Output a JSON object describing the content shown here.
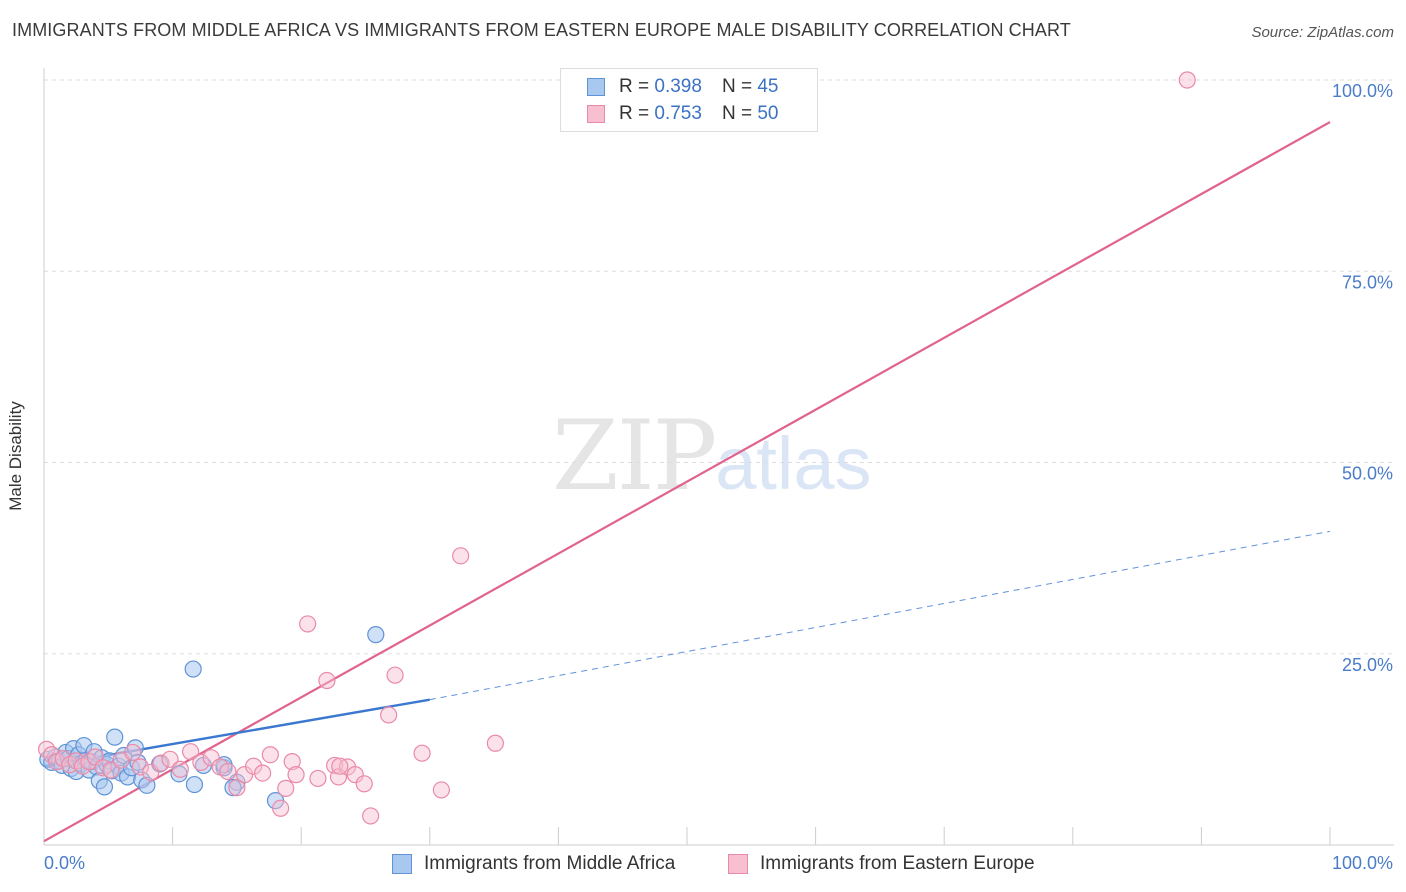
{
  "header": {
    "title": "IMMIGRANTS FROM MIDDLE AFRICA VS IMMIGRANTS FROM EASTERN EUROPE MALE DISABILITY CORRELATION CHART",
    "source": "Source: ZipAtlas.com"
  },
  "watermark": {
    "zip": "ZIP",
    "atlas": "atlas"
  },
  "legend": {
    "rows": [
      {
        "r_label": "R =",
        "r_value": "0.398",
        "n_label": "N =",
        "n_value": "45"
      },
      {
        "r_label": "R =",
        "r_value": "0.753",
        "n_label": "N =",
        "n_value": "50"
      }
    ]
  },
  "colors": {
    "blue_fill": "#a9c8f0",
    "blue_stroke": "#5f93d6",
    "blue_line": "#3b78d0",
    "pink_fill": "#f7bfd0",
    "pink_stroke": "#e98aa8",
    "pink_line": "#e0628d",
    "grid": "#dddddd",
    "tick_text": "#4a7cc9"
  },
  "chart_data": {
    "type": "scatter",
    "title": "IMMIGRANTS FROM MIDDLE AFRICA VS IMMIGRANTS FROM EASTERN EUROPE MALE DISABILITY CORRELATION CHART",
    "xlabel": "",
    "ylabel": "Male Disability",
    "xlim": [
      0,
      100
    ],
    "ylim": [
      0,
      100
    ],
    "x_tick_labels": [
      "0.0%",
      "100.0%"
    ],
    "y_ticks": [
      25,
      50,
      75,
      100
    ],
    "y_tick_labels": [
      "25.0%",
      "50.0%",
      "75.0%",
      "100.0%"
    ],
    "grid": true,
    "legend_position": "top-center",
    "series": [
      {
        "name": "Immigrants from Middle Africa",
        "color": "#a9c8f0",
        "r": 0.398,
        "n": 45,
        "trend": {
          "x": [
            0,
            30
          ],
          "y": [
            10.3,
            19.0
          ],
          "dashed_extension_to": [
            100,
            41.0
          ]
        },
        "points": [
          [
            0.3,
            11.2
          ],
          [
            0.6,
            10.8
          ],
          [
            0.9,
            11.5
          ],
          [
            1.2,
            11.0
          ],
          [
            1.4,
            10.4
          ],
          [
            1.7,
            12.1
          ],
          [
            1.9,
            11.3
          ],
          [
            2.1,
            10.0
          ],
          [
            2.3,
            12.6
          ],
          [
            2.5,
            9.6
          ],
          [
            2.7,
            11.8
          ],
          [
            2.9,
            10.6
          ],
          [
            3.1,
            13.0
          ],
          [
            3.3,
            11.1
          ],
          [
            3.5,
            9.8
          ],
          [
            3.7,
            10.9
          ],
          [
            3.9,
            12.2
          ],
          [
            4.1,
            10.2
          ],
          [
            4.3,
            8.4
          ],
          [
            4.5,
            11.4
          ],
          [
            4.7,
            7.6
          ],
          [
            4.9,
            10.5
          ],
          [
            5.1,
            11.0
          ],
          [
            5.3,
            9.7
          ],
          [
            5.5,
            14.1
          ],
          [
            5.8,
            10.3
          ],
          [
            6.0,
            9.4
          ],
          [
            6.2,
            11.7
          ],
          [
            6.5,
            8.9
          ],
          [
            6.8,
            10.1
          ],
          [
            7.1,
            12.7
          ],
          [
            7.3,
            10.8
          ],
          [
            7.6,
            8.5
          ],
          [
            8.0,
            7.8
          ],
          [
            9.0,
            10.6
          ],
          [
            10.5,
            9.3
          ],
          [
            11.7,
            7.9
          ],
          [
            12.4,
            10.4
          ],
          [
            14.0,
            10.1
          ],
          [
            15.0,
            8.2
          ],
          [
            11.6,
            23.0
          ],
          [
            14.0,
            10.5
          ],
          [
            14.7,
            7.5
          ],
          [
            18.0,
            5.8
          ],
          [
            25.8,
            27.5
          ]
        ]
      },
      {
        "name": "Immigrants from Eastern Europe",
        "color": "#f7bfd0",
        "r": 0.753,
        "n": 50,
        "trend": {
          "x": [
            0,
            100
          ],
          "y": [
            0.5,
            94.5
          ]
        },
        "points": [
          [
            0.2,
            12.5
          ],
          [
            0.6,
            11.8
          ],
          [
            1.0,
            10.9
          ],
          [
            1.5,
            11.3
          ],
          [
            2.0,
            10.5
          ],
          [
            2.5,
            11.0
          ],
          [
            3.0,
            10.3
          ],
          [
            3.5,
            10.9
          ],
          [
            4.0,
            11.5
          ],
          [
            4.6,
            10.1
          ],
          [
            5.2,
            9.8
          ],
          [
            6.0,
            11.1
          ],
          [
            6.9,
            12.1
          ],
          [
            7.5,
            10.2
          ],
          [
            8.3,
            9.5
          ],
          [
            9.1,
            10.7
          ],
          [
            9.8,
            11.2
          ],
          [
            10.6,
            9.9
          ],
          [
            11.4,
            12.2
          ],
          [
            12.2,
            10.8
          ],
          [
            13.0,
            11.4
          ],
          [
            13.7,
            10.2
          ],
          [
            14.3,
            9.6
          ],
          [
            15.0,
            7.5
          ],
          [
            15.6,
            9.2
          ],
          [
            16.3,
            10.3
          ],
          [
            17.0,
            9.4
          ],
          [
            17.6,
            11.8
          ],
          [
            18.4,
            4.8
          ],
          [
            18.8,
            7.4
          ],
          [
            19.3,
            10.9
          ],
          [
            20.5,
            28.9
          ],
          [
            19.6,
            9.2
          ],
          [
            22.0,
            21.5
          ],
          [
            21.3,
            8.7
          ],
          [
            22.6,
            10.4
          ],
          [
            22.9,
            8.9
          ],
          [
            23.6,
            10.2
          ],
          [
            24.2,
            9.2
          ],
          [
            24.9,
            8.0
          ],
          [
            25.4,
            3.8
          ],
          [
            27.3,
            22.2
          ],
          [
            26.8,
            17.0
          ],
          [
            29.4,
            12.0
          ],
          [
            32.4,
            37.8
          ],
          [
            30.9,
            7.2
          ],
          [
            35.1,
            13.3
          ],
          [
            47.5,
            100.0
          ],
          [
            88.9,
            100.0
          ],
          [
            23.0,
            10.3
          ]
        ]
      }
    ]
  },
  "bottom_legend": {
    "items": [
      {
        "label": "Immigrants from Middle Africa"
      },
      {
        "label": "Immigrants from Eastern Europe"
      }
    ]
  }
}
